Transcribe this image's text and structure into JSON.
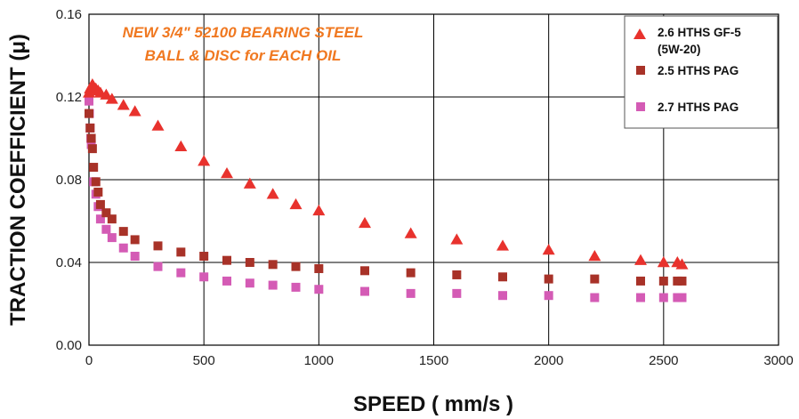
{
  "chart_data": {
    "type": "scatter",
    "xlabel": "SPEED ( mm/s )",
    "ylabel": "TRACTION COEFFICIENT (μ)",
    "xlim": [
      0,
      3000
    ],
    "ylim": [
      0,
      0.16
    ],
    "x_ticks": [
      "0",
      "500",
      "1000",
      "1500",
      "2000",
      "2500",
      "3000"
    ],
    "y_ticks": [
      "0.00",
      "0.04",
      "0.08",
      "0.12",
      "0.16"
    ],
    "grid": true,
    "legend_position": "top-right",
    "annotation": [
      "NEW 3/4\" 52100 BEARING STEEL",
      "BALL & DISC for EACH OIL"
    ],
    "series": [
      {
        "name": "2.6 HTHS GF-5",
        "name_line2": "(5W-20)",
        "marker": "triangle",
        "color": "#e8322d",
        "points": [
          [
            0,
            0.122
          ],
          [
            5,
            0.124
          ],
          [
            10,
            0.125
          ],
          [
            15,
            0.126
          ],
          [
            20,
            0.125
          ],
          [
            25,
            0.124
          ],
          [
            30,
            0.124
          ],
          [
            40,
            0.123
          ],
          [
            50,
            0.122
          ],
          [
            75,
            0.121
          ],
          [
            100,
            0.119
          ],
          [
            150,
            0.116
          ],
          [
            200,
            0.113
          ],
          [
            300,
            0.106
          ],
          [
            400,
            0.096
          ],
          [
            500,
            0.089
          ],
          [
            600,
            0.083
          ],
          [
            700,
            0.078
          ],
          [
            800,
            0.073
          ],
          [
            900,
            0.068
          ],
          [
            1000,
            0.065
          ],
          [
            1200,
            0.059
          ],
          [
            1400,
            0.054
          ],
          [
            1600,
            0.051
          ],
          [
            1800,
            0.048
          ],
          [
            2000,
            0.046
          ],
          [
            2200,
            0.043
          ],
          [
            2400,
            0.041
          ],
          [
            2500,
            0.04
          ],
          [
            2560,
            0.04
          ],
          [
            2580,
            0.039
          ]
        ]
      },
      {
        "name": "2.5 HTHS PAG",
        "marker": "square",
        "color": "#a83228",
        "points": [
          [
            0,
            0.112
          ],
          [
            5,
            0.105
          ],
          [
            10,
            0.1
          ],
          [
            15,
            0.095
          ],
          [
            20,
            0.086
          ],
          [
            30,
            0.079
          ],
          [
            40,
            0.074
          ],
          [
            50,
            0.068
          ],
          [
            75,
            0.064
          ],
          [
            100,
            0.061
          ],
          [
            150,
            0.055
          ],
          [
            200,
            0.051
          ],
          [
            300,
            0.048
          ],
          [
            400,
            0.045
          ],
          [
            500,
            0.043
          ],
          [
            600,
            0.041
          ],
          [
            700,
            0.04
          ],
          [
            800,
            0.039
          ],
          [
            900,
            0.038
          ],
          [
            1000,
            0.037
          ],
          [
            1200,
            0.036
          ],
          [
            1400,
            0.035
          ],
          [
            1600,
            0.034
          ],
          [
            1800,
            0.033
          ],
          [
            2000,
            0.032
          ],
          [
            2200,
            0.032
          ],
          [
            2400,
            0.031
          ],
          [
            2500,
            0.031
          ],
          [
            2560,
            0.031
          ],
          [
            2580,
            0.031
          ]
        ]
      },
      {
        "name": "2.7 HTHS PAG",
        "marker": "square",
        "color": "#d45bb5",
        "points": [
          [
            0,
            0.118
          ],
          [
            2,
            0.112
          ],
          [
            5,
            0.105
          ],
          [
            8,
            0.1
          ],
          [
            10,
            0.097
          ],
          [
            20,
            0.079
          ],
          [
            30,
            0.073
          ],
          [
            40,
            0.067
          ],
          [
            50,
            0.061
          ],
          [
            75,
            0.056
          ],
          [
            100,
            0.052
          ],
          [
            150,
            0.047
          ],
          [
            200,
            0.043
          ],
          [
            300,
            0.038
          ],
          [
            400,
            0.035
          ],
          [
            500,
            0.033
          ],
          [
            600,
            0.031
          ],
          [
            700,
            0.03
          ],
          [
            800,
            0.029
          ],
          [
            900,
            0.028
          ],
          [
            1000,
            0.027
          ],
          [
            1200,
            0.026
          ],
          [
            1400,
            0.025
          ],
          [
            1600,
            0.025
          ],
          [
            1800,
            0.024
          ],
          [
            2000,
            0.024
          ],
          [
            2200,
            0.023
          ],
          [
            2400,
            0.023
          ],
          [
            2500,
            0.023
          ],
          [
            2560,
            0.023
          ],
          [
            2580,
            0.023
          ]
        ]
      }
    ]
  }
}
